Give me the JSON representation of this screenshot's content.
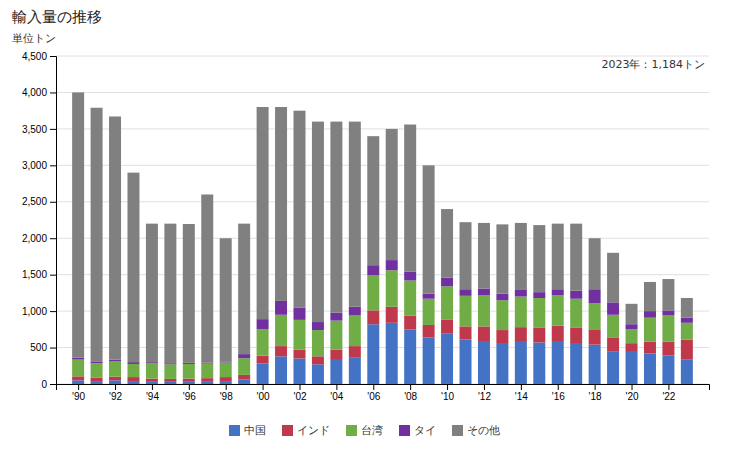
{
  "chart_data": {
    "type": "bar",
    "title": "輸入量の推移",
    "ylabel": "単位トン",
    "annotation": "2023年：1,184トン",
    "stacked": true,
    "grid": true,
    "legend": "bottom",
    "x": [
      1990,
      1991,
      1992,
      1993,
      1994,
      1995,
      1996,
      1997,
      1998,
      1999,
      2000,
      2001,
      2002,
      2003,
      2004,
      2005,
      2006,
      2007,
      2008,
      2009,
      2010,
      2011,
      2012,
      2013,
      2014,
      2015,
      2016,
      2017,
      2018,
      2019,
      2020,
      2021,
      2022,
      2023
    ],
    "series": [
      {
        "name": "中国",
        "color": "#4472c4",
        "values": [
          50,
          40,
          50,
          40,
          30,
          30,
          30,
          30,
          40,
          60,
          280,
          380,
          350,
          270,
          330,
          360,
          820,
          840,
          750,
          640,
          690,
          610,
          590,
          550,
          590,
          570,
          590,
          550,
          540,
          450,
          440,
          420,
          390,
          340
        ]
      },
      {
        "name": "インド",
        "color": "#c0384b",
        "values": [
          55,
          45,
          50,
          55,
          45,
          40,
          45,
          50,
          55,
          65,
          110,
          140,
          120,
          110,
          140,
          160,
          190,
          220,
          190,
          170,
          190,
          180,
          200,
          190,
          190,
          200,
          210,
          220,
          210,
          190,
          120,
          160,
          190,
          270
        ]
      },
      {
        "name": "台湾",
        "color": "#70ad47",
        "values": [
          230,
          200,
          210,
          180,
          210,
          200,
          200,
          200,
          200,
          230,
          360,
          430,
          410,
          360,
          400,
          420,
          480,
          500,
          480,
          360,
          460,
          420,
          430,
          410,
          420,
          410,
          420,
          400,
          360,
          310,
          190,
          330,
          360,
          230
        ]
      },
      {
        "name": "タイ",
        "color": "#7030a0",
        "values": [
          25,
          25,
          25,
          25,
          15,
          15,
          15,
          15,
          15,
          55,
          140,
          190,
          170,
          110,
          110,
          120,
          140,
          140,
          120,
          70,
          120,
          90,
          90,
          90,
          90,
          80,
          80,
          110,
          190,
          170,
          70,
          90,
          70,
          70
        ]
      },
      {
        "name": "その他",
        "color": "#808080",
        "values": [
          3640,
          3480,
          3335,
          2600,
          1900,
          1915,
          1905,
          2305,
          1690,
          1790,
          2910,
          2660,
          2700,
          2750,
          2620,
          2540,
          1770,
          1800,
          2020,
          1760,
          940,
          920,
          900,
          950,
          920,
          920,
          900,
          920,
          700,
          680,
          280,
          400,
          430,
          270
        ]
      }
    ],
    "xlim": [
      1988.8,
      2024.2
    ],
    "xticks": [
      {
        "value": 1990,
        "label": "'90"
      },
      {
        "value": 1992,
        "label": "'92"
      },
      {
        "value": 1994,
        "label": "'94"
      },
      {
        "value": 1996,
        "label": "'96"
      },
      {
        "value": 1998,
        "label": "'98"
      },
      {
        "value": 2000,
        "label": "'00"
      },
      {
        "value": 2002,
        "label": "'02"
      },
      {
        "value": 2004,
        "label": "'04"
      },
      {
        "value": 2006,
        "label": "'06"
      },
      {
        "value": 2008,
        "label": "'08"
      },
      {
        "value": 2010,
        "label": "'10"
      },
      {
        "value": 2012,
        "label": "'12"
      },
      {
        "value": 2014,
        "label": "'14"
      },
      {
        "value": 2016,
        "label": "'16"
      },
      {
        "value": 2018,
        "label": "'18"
      },
      {
        "value": 2020,
        "label": "'20"
      },
      {
        "value": 2022,
        "label": "'22"
      }
    ],
    "ylim": [
      0,
      4500
    ],
    "yticks": [
      0,
      500,
      {
        "value": 1000,
        "label": "1,000"
      },
      {
        "value": 1500,
        "label": "1,500"
      },
      {
        "value": 2000,
        "label": "2,000"
      },
      {
        "value": 2500,
        "label": "2,500"
      },
      {
        "value": 3000,
        "label": "3,000"
      },
      {
        "value": 3500,
        "label": "3,500"
      },
      {
        "value": 4000,
        "label": "4,000"
      },
      {
        "value": 4500,
        "label": "4,500"
      }
    ]
  }
}
